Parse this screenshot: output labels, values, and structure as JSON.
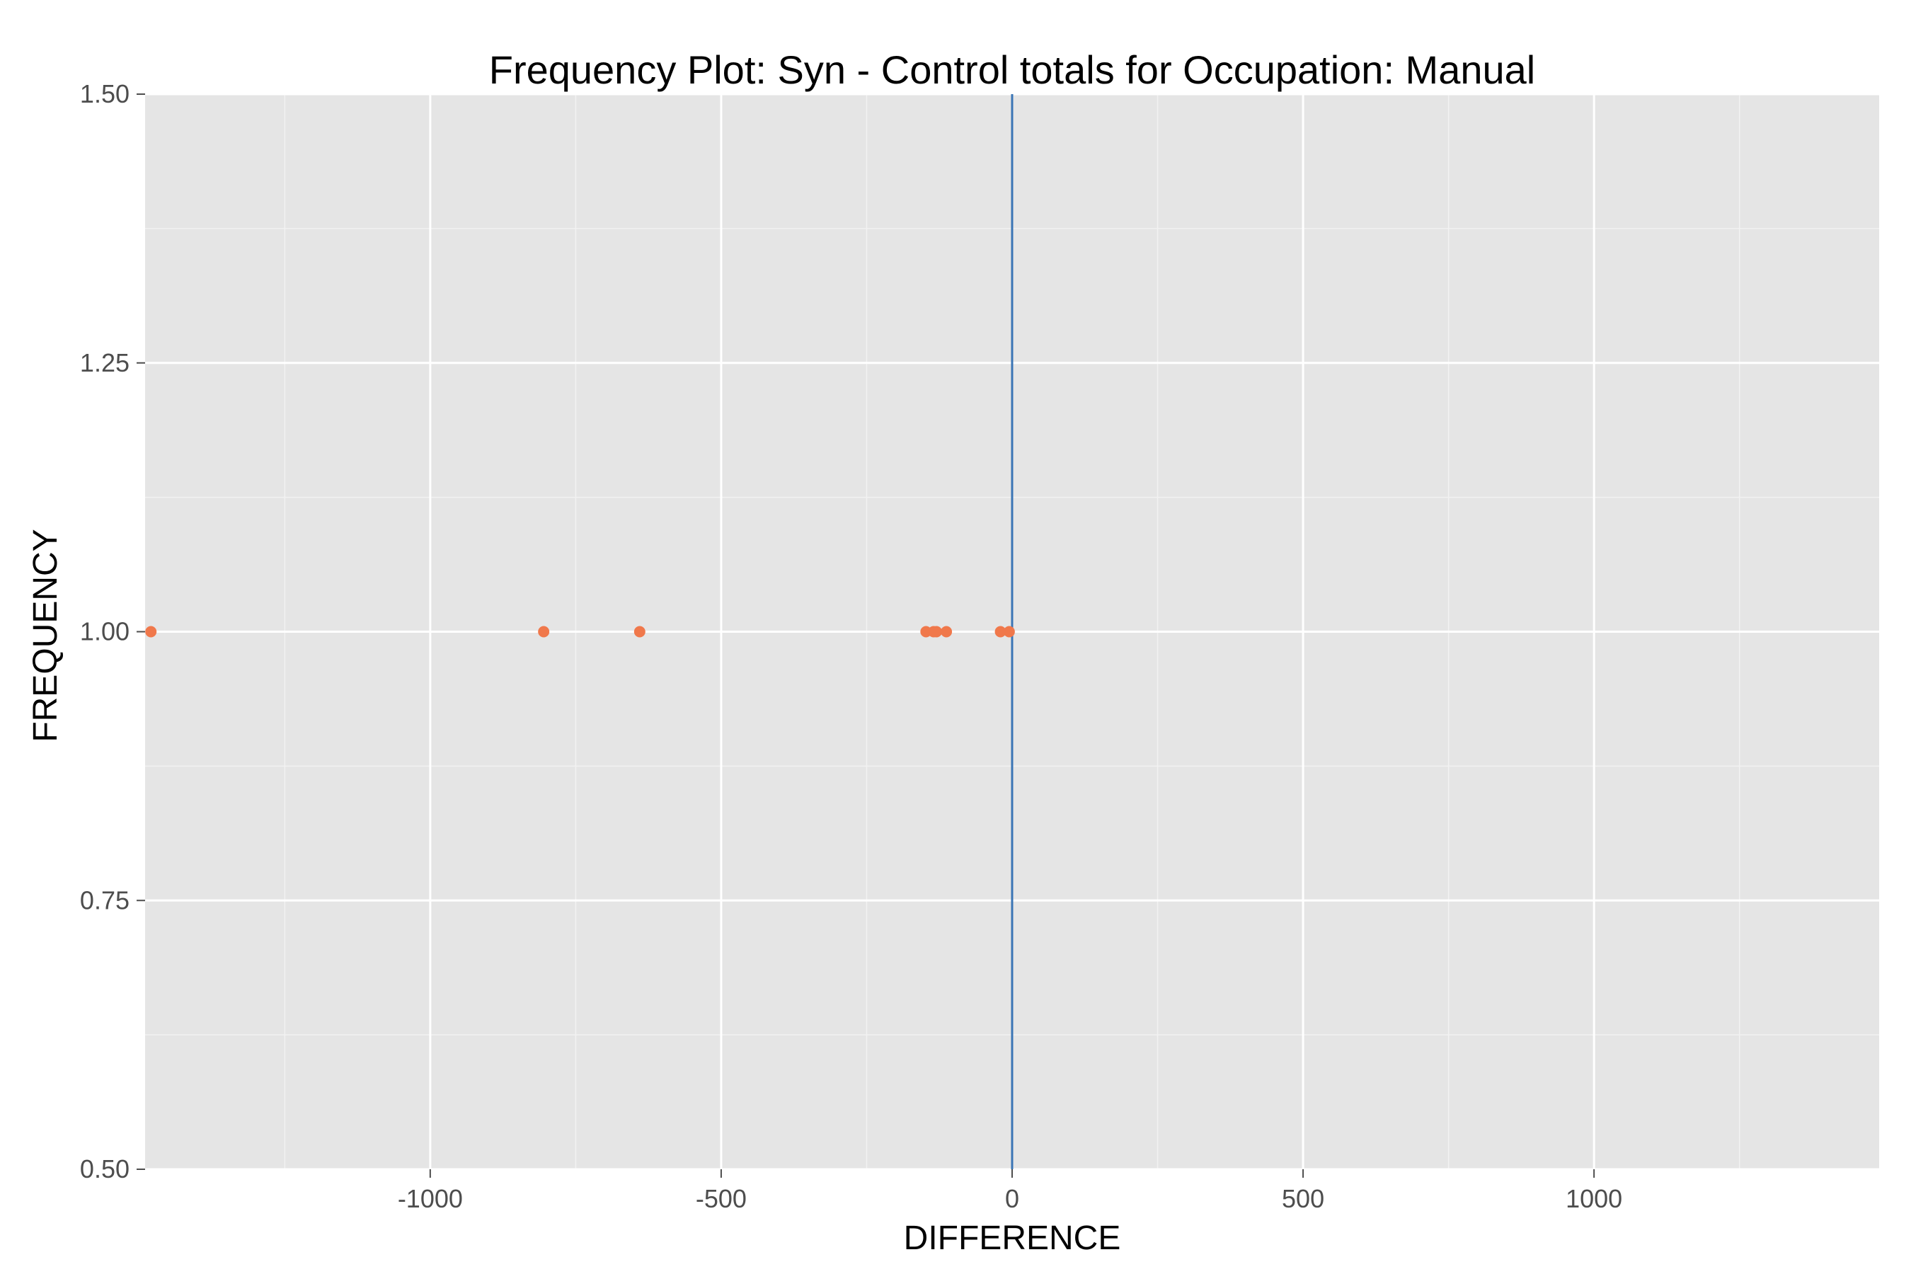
{
  "chart_data": {
    "type": "scatter",
    "title": "Frequency Plot: Syn - Control totals for Occupation: Manual",
    "xlabel": "DIFFERENCE",
    "ylabel": "FREQUENCY",
    "xlim": [
      -1490,
      1490
    ],
    "ylim": [
      0.5,
      1.5
    ],
    "x_ticks": [
      -1000,
      -500,
      0,
      500,
      1000
    ],
    "x_tick_labels": [
      "-1000",
      "-500",
      "0",
      "500",
      "1000"
    ],
    "y_ticks": [
      0.5,
      0.75,
      1.0,
      1.25,
      1.5
    ],
    "y_tick_labels": [
      "0.50",
      "0.75",
      "1.00",
      "1.25",
      "1.50"
    ],
    "grid": true,
    "reference_line": {
      "axis": "x",
      "value": 0,
      "color": "#3a75b5"
    },
    "points": [
      {
        "x": -1480,
        "y": 1
      },
      {
        "x": -805,
        "y": 1
      },
      {
        "x": -640,
        "y": 1
      },
      {
        "x": -148,
        "y": 1
      },
      {
        "x": -135,
        "y": 1
      },
      {
        "x": -130,
        "y": 1
      },
      {
        "x": -113,
        "y": 1
      },
      {
        "x": -20,
        "y": 1
      },
      {
        "x": -5,
        "y": 1
      }
    ],
    "colors": {
      "panel": "#e5e5e5",
      "grid_major": "#ffffff",
      "grid_minor": "#f2f2f2",
      "points": "#f0784b",
      "tick": "#4d4d4d"
    }
  }
}
